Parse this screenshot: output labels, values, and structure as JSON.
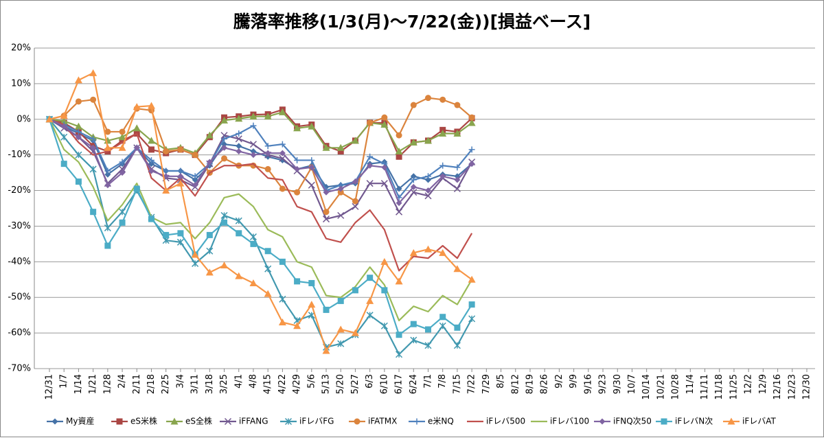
{
  "chart_data": {
    "type": "line",
    "title": "騰落率推移(1/3(月)～7/22(金))[損益ベース]",
    "categories": [
      "12/31",
      "1/7",
      "1/14",
      "1/21",
      "1/28",
      "2/4",
      "2/11",
      "2/18",
      "2/25",
      "3/4",
      "3/11",
      "3/18",
      "3/25",
      "4/1",
      "4/8",
      "4/15",
      "4/22",
      "4/29",
      "5/6",
      "5/13",
      "5/20",
      "5/27",
      "6/3",
      "6/10",
      "6/17",
      "6/24",
      "7/1",
      "7/8",
      "7/15",
      "7/22",
      "7/29",
      "8/5",
      "8/12",
      "8/19",
      "8/26",
      "9/2",
      "9/9",
      "9/16",
      "9/23",
      "9/30",
      "10/7",
      "10/14",
      "10/21",
      "10/28",
      "11/4",
      "11/11",
      "11/18",
      "11/25",
      "12/2",
      "12/9",
      "12/16",
      "12/23",
      "12/30"
    ],
    "ylim": [
      -70,
      20
    ],
    "yticks": [
      {
        "value": -70,
        "label": "-70%"
      },
      {
        "value": -60,
        "label": "-60%"
      },
      {
        "value": -50,
        "label": "-50%"
      },
      {
        "value": -40,
        "label": "-40%"
      },
      {
        "value": -30,
        "label": "-30%"
      },
      {
        "value": -20,
        "label": "-20%"
      },
      {
        "value": -10,
        "label": "-10%"
      },
      {
        "value": 0,
        "label": "0%"
      },
      {
        "value": 10,
        "label": "10%"
      },
      {
        "value": 20,
        "label": "20%"
      }
    ],
    "grid": true,
    "legend": "bottom",
    "series": [
      {
        "name": "My資産",
        "color": "#4572A7",
        "marker": "diamond",
        "values": [
          0,
          -2,
          -4,
          -6,
          -15.5,
          -12.5,
          -8,
          -12.5,
          -14.5,
          -14.5,
          -17,
          -13,
          -7,
          -7.5,
          -9,
          -10.5,
          -11.5,
          -14,
          -13,
          -19,
          -18.5,
          -18,
          -12.5,
          -12,
          -19.5,
          -16,
          -17,
          -15.5,
          -16,
          -12.5,
          null,
          null,
          null,
          null,
          null,
          null,
          null,
          null,
          null,
          null,
          null,
          null,
          null,
          null,
          null,
          null,
          null,
          null,
          null,
          null,
          null,
          null,
          null
        ]
      },
      {
        "name": "eS米株",
        "color": "#AA4643",
        "marker": "square",
        "values": [
          0,
          -1,
          -3.5,
          -7.5,
          -9,
          -6,
          -4,
          -8.5,
          -9.5,
          -8.5,
          -10,
          -5,
          0.5,
          0.8,
          1.3,
          1.4,
          2.7,
          -2,
          -1.5,
          -7.5,
          -9,
          -6,
          -1,
          -1,
          -10.5,
          -6.5,
          -6,
          -3,
          -3.5,
          0.3,
          null,
          null,
          null,
          null,
          null,
          null,
          null,
          null,
          null,
          null,
          null,
          null,
          null,
          null,
          null,
          null,
          null,
          null,
          null,
          null,
          null,
          null,
          null
        ]
      },
      {
        "name": "eS全株",
        "color": "#89A54E",
        "marker": "triangle",
        "values": [
          0,
          -0.5,
          -2,
          -5,
          -6,
          -5,
          -2.5,
          -6,
          -8.5,
          -8,
          -9.5,
          -4.5,
          -0.3,
          0.2,
          0.8,
          0.8,
          2,
          -2.5,
          -2,
          -8,
          -8,
          -6,
          -1,
          -1.5,
          -9,
          -6.5,
          -6,
          -4,
          -4,
          -1,
          null,
          null,
          null,
          null,
          null,
          null,
          null,
          null,
          null,
          null,
          null,
          null,
          null,
          null,
          null,
          null,
          null,
          null,
          null,
          null,
          null,
          null,
          null
        ]
      },
      {
        "name": "iFFANG",
        "color": "#71588F",
        "marker": "x",
        "values": [
          0,
          -2.5,
          -5,
          -9,
          -18,
          -14,
          -8,
          -14,
          -16.5,
          -17,
          -19,
          -12.5,
          -4.5,
          -5.5,
          -7,
          -10,
          -11,
          -14.5,
          -18.5,
          -28,
          -27,
          -24.5,
          -18,
          -18,
          -26,
          -20.5,
          -21.5,
          -16.5,
          -19.5,
          -12,
          null,
          null,
          null,
          null,
          null,
          null,
          null,
          null,
          null,
          null,
          null,
          null,
          null,
          null,
          null,
          null,
          null,
          null,
          null,
          null,
          null,
          null,
          null
        ]
      },
      {
        "name": "iFレバFG",
        "color": "#4198AF",
        "marker": "star",
        "values": [
          0,
          -5,
          -10,
          -14,
          -30.5,
          -26,
          -20,
          -27.5,
          -34,
          -34.5,
          -40.5,
          -37,
          -27,
          -28.5,
          -33,
          -42,
          -50.5,
          -56.5,
          -55,
          -64,
          -63,
          -60.5,
          -55,
          -58,
          -66,
          -62,
          -63.5,
          -58,
          -63.5,
          -56,
          null,
          null,
          null,
          null,
          null,
          null,
          null,
          null,
          null,
          null,
          null,
          null,
          null,
          null,
          null,
          null,
          null,
          null,
          null,
          null,
          null,
          null,
          null
        ]
      },
      {
        "name": "iFATMX",
        "color": "#DB843D",
        "marker": "circle",
        "values": [
          0,
          1,
          5,
          5.5,
          -3.5,
          -3.5,
          3,
          2.5,
          -9,
          -8.5,
          -10,
          -15,
          -11,
          -13,
          -13,
          -14,
          -19.5,
          -20.5,
          -13.5,
          -26,
          -20.5,
          -23,
          -1,
          0.5,
          -4.5,
          4,
          6,
          5.5,
          4,
          0.5,
          null,
          null,
          null,
          null,
          null,
          null,
          null,
          null,
          null,
          null,
          null,
          null,
          null,
          null,
          null,
          null,
          null,
          null,
          null,
          null,
          null,
          null,
          null
        ]
      },
      {
        "name": "e米NQ",
        "color": "#4F81BD",
        "marker": "plus",
        "values": [
          0,
          -1.5,
          -3.5,
          -5.5,
          -14.5,
          -12,
          -8,
          -11.5,
          -14.5,
          -14.5,
          -16,
          -12.5,
          -5.5,
          -4,
          -1.8,
          -7.5,
          -7,
          -11.5,
          -11.5,
          -20,
          -18.5,
          -17.5,
          -10.5,
          -12.5,
          -22,
          -17,
          -16,
          -13,
          -13.5,
          -8.5,
          null,
          null,
          null,
          null,
          null,
          null,
          null,
          null,
          null,
          null,
          null,
          null,
          null,
          null,
          null,
          null,
          null,
          null,
          null,
          null,
          null,
          null,
          null
        ]
      },
      {
        "name": "iFレバ500",
        "color": "#C0504D",
        "marker": "none",
        "values": [
          0,
          -1.5,
          -6.5,
          -10,
          -9,
          -6.5,
          -4,
          -16.5,
          -20,
          -16.5,
          -21.5,
          -15,
          -13,
          -13,
          -12.5,
          -16.5,
          -17,
          -24.5,
          -26,
          -33.5,
          -34.5,
          -29,
          -25.5,
          -31,
          -42.5,
          -38.5,
          -39,
          -35.5,
          -39,
          -32,
          null,
          null,
          null,
          null,
          null,
          null,
          null,
          null,
          null,
          null,
          null,
          null,
          null,
          null,
          null,
          null,
          null,
          null,
          null,
          null,
          null,
          null,
          null
        ]
      },
      {
        "name": "iFレバ100",
        "color": "#9BBB59",
        "marker": "none",
        "values": [
          0,
          -8.5,
          -12,
          -19,
          -28.5,
          -24,
          -18,
          -27.5,
          -29.5,
          -29,
          -33.5,
          -29,
          -22,
          -21,
          -24.5,
          -31,
          -33,
          -40,
          -41.5,
          -49.5,
          -50,
          -47,
          -41.5,
          -46.5,
          -56.5,
          -52.5,
          -54,
          -49.5,
          -52,
          -45,
          null,
          null,
          null,
          null,
          null,
          null,
          null,
          null,
          null,
          null,
          null,
          null,
          null,
          null,
          null,
          null,
          null,
          null,
          null,
          null,
          null,
          null,
          null
        ]
      },
      {
        "name": "iFNQ次50",
        "color": "#8064A2",
        "marker": "diamond",
        "values": [
          0,
          -2,
          -5,
          -8,
          -18.5,
          -15,
          -8,
          -14.5,
          -16,
          -16,
          -18.5,
          -12,
          -8,
          -9,
          -10,
          -9.5,
          -9.5,
          -14,
          -13.5,
          -20.5,
          -19.5,
          -17.5,
          -13,
          -13.5,
          -23.5,
          -19,
          -20,
          -16,
          -17,
          -12.5,
          null,
          null,
          null,
          null,
          null,
          null,
          null,
          null,
          null,
          null,
          null,
          null,
          null,
          null,
          null,
          null,
          null,
          null,
          null,
          null,
          null,
          null,
          null
        ]
      },
      {
        "name": "iFレバN次",
        "color": "#4BACC6",
        "marker": "square",
        "values": [
          0,
          -12.5,
          -17.5,
          -26,
          -35.5,
          -29,
          -19.5,
          -28,
          -32.5,
          -32,
          -38,
          -32.5,
          -29,
          -32,
          -35,
          -37,
          -40,
          -45.5,
          -46,
          -53.5,
          -51,
          -48,
          -44.5,
          -48,
          -60.5,
          -57.5,
          -59,
          -55.5,
          -58.5,
          -52,
          null,
          null,
          null,
          null,
          null,
          null,
          null,
          null,
          null,
          null,
          null,
          null,
          null,
          null,
          null,
          null,
          null,
          null,
          null,
          null,
          null,
          null,
          null
        ]
      },
      {
        "name": "iFレバAT",
        "color": "#F79646",
        "marker": "triangle",
        "values": [
          0,
          1,
          11,
          13,
          -8,
          -8,
          3.5,
          3.8,
          -20,
          -18,
          -38,
          -43,
          -41,
          -44,
          -46,
          -49,
          -57,
          -58,
          -52,
          -65,
          -59,
          -60,
          -51,
          -40,
          -45.5,
          -37.5,
          -36.5,
          -37.5,
          -42,
          -45,
          null,
          null,
          null,
          null,
          null,
          null,
          null,
          null,
          null,
          null,
          null,
          null,
          null,
          null,
          null,
          null,
          null,
          null,
          null,
          null,
          null,
          null,
          null
        ]
      }
    ]
  }
}
